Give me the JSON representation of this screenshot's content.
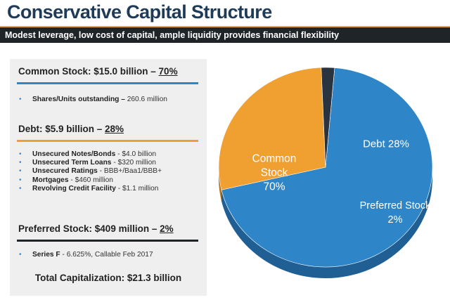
{
  "header": {
    "title": "Conservative Capital Structure",
    "subtitle": "Modest leverage, low cost of capital, ample liquidity provides financial flexibility"
  },
  "sections": {
    "common": {
      "heading": "Common Stock: $15.0 billion – ",
      "pct": "70%",
      "rule_color": "#2e86c8",
      "bullets": [
        {
          "label": "Shares/Units outstanding –",
          "value": " 260.6 million"
        }
      ]
    },
    "debt": {
      "heading": "Debt: $5.9 billion – ",
      "pct": "28%",
      "rule_color": "#f0a030",
      "bullets": [
        {
          "label": "Unsecured Notes/Bonds",
          "value": " - $4.0 billion"
        },
        {
          "label": "Unsecured Term Loans",
          "value": " - $320 million"
        },
        {
          "label": "Unsecured Ratings",
          "value": " - BBB+/Baa1/BBB+"
        },
        {
          "label": "Mortgages",
          "value": " - $460 million"
        },
        {
          "label": "Revolving Credit Facility",
          "value": " - $1.1 million"
        }
      ]
    },
    "preferred": {
      "heading": "Preferred Stock: $409 million – ",
      "pct": "2%",
      "rule_color": "#1f2428",
      "bullets": [
        {
          "label": "Series F",
          "value": " - 6.625%, Callable Feb 2017"
        }
      ]
    },
    "total": "Total Capitalization: $21.3 billion"
  },
  "chart_data": {
    "type": "pie",
    "title": "",
    "slices": [
      {
        "name": "Common Stock",
        "label_lines": [
          "Common",
          "Stock",
          "70%"
        ],
        "value": 70,
        "color": "#2e86c8",
        "side_color": "#1f5f94"
      },
      {
        "name": "Debt",
        "label_lines": [
          "Debt 28%"
        ],
        "value": 28,
        "color": "#f0a030",
        "side_color": "#b27220"
      },
      {
        "name": "Preferred Stock",
        "label_lines": [
          "Preferred Stock",
          "2%"
        ],
        "value": 2,
        "color": "#2a3340",
        "side_color": "#141a22"
      }
    ]
  }
}
